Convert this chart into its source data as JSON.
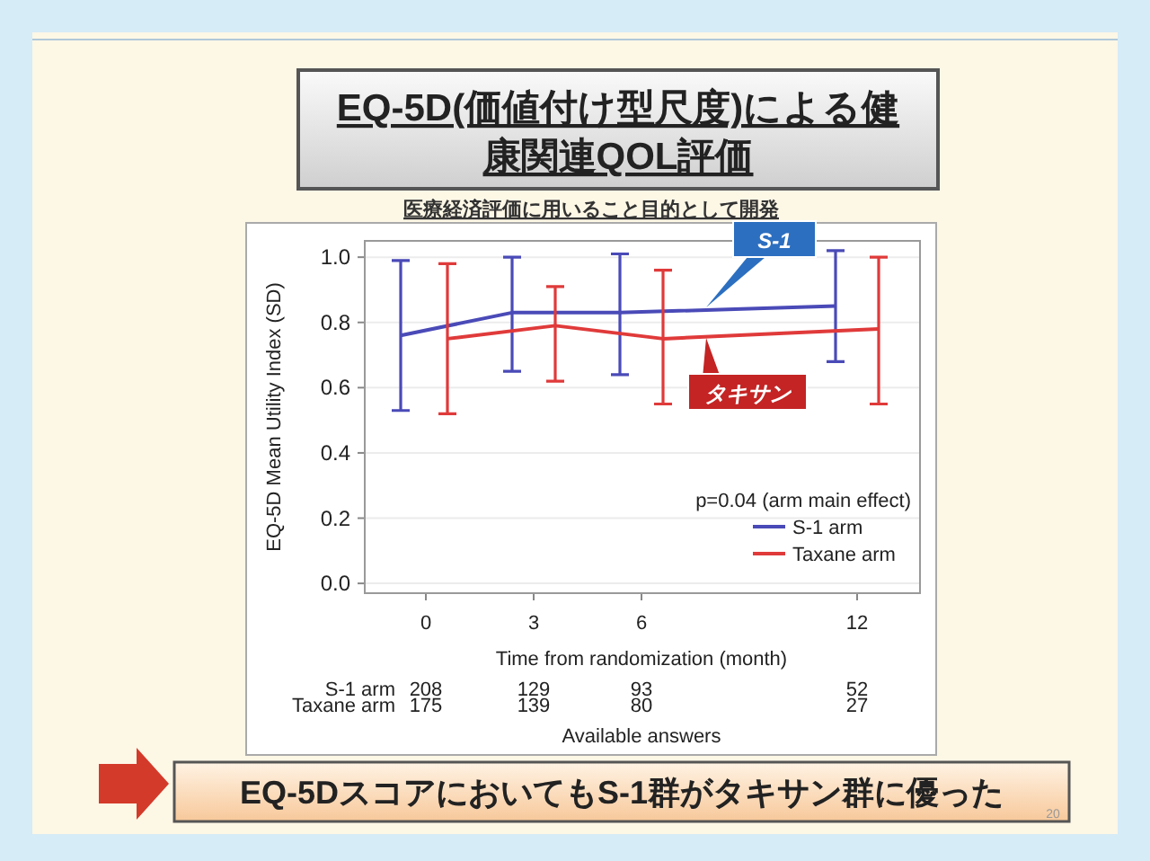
{
  "chart_data": {
    "type": "line",
    "title": "EQ-5D(価値付け型尺度)による健康関連QOL評価",
    "subtitle": "医療経済評価に用いること目的として開発",
    "xlabel": "Time from randomization (month)",
    "ylabel": "EQ-5D Mean Utility Index (SD)",
    "xlim": [
      -1.7,
      13.75
    ],
    "xticks": [
      0,
      3,
      6,
      12
    ],
    "ylim": [
      -0.03,
      1.05
    ],
    "yticks": [
      {
        "value": 0,
        "label": "0.0"
      },
      0.2,
      0.4,
      0.6,
      0.8,
      {
        "value": 1,
        "label": "1.0"
      }
    ],
    "grid": "y",
    "legend": "bottom right",
    "marker": "none",
    "line_style": "solid",
    "series": [
      {
        "name": "S-1 arm",
        "color": "#4a4ab8",
        "x": [
          -0.7,
          2.4,
          5.4,
          11.4
        ],
        "values": [
          0.76,
          0.83,
          0.83,
          0.85
        ],
        "errors": [
          [
            0.53,
            0.99
          ],
          [
            0.65,
            1.0
          ],
          [
            0.64,
            1.01
          ],
          [
            0.68,
            1.02
          ]
        ]
      },
      {
        "name": "Taxane arm",
        "color": "#e03a3a",
        "x": [
          0.6,
          3.6,
          6.6,
          12.6
        ],
        "values": [
          0.75,
          0.79,
          0.75,
          0.78
        ],
        "errors": [
          [
            0.52,
            0.98
          ],
          [
            0.62,
            0.91
          ],
          [
            0.55,
            0.96
          ],
          [
            0.55,
            1.0
          ]
        ]
      }
    ],
    "annotations": [
      "p=0.04 (arm main effect)",
      "S-1",
      "タキサン",
      "S-1 arm",
      "Taxane arm",
      "208",
      "129",
      "93",
      "52",
      "175",
      "139",
      "80",
      "27",
      "Available answers",
      "EQ-5DスコアにおいてもS-1群がタキサン群に優った",
      "20"
    ]
  }
}
